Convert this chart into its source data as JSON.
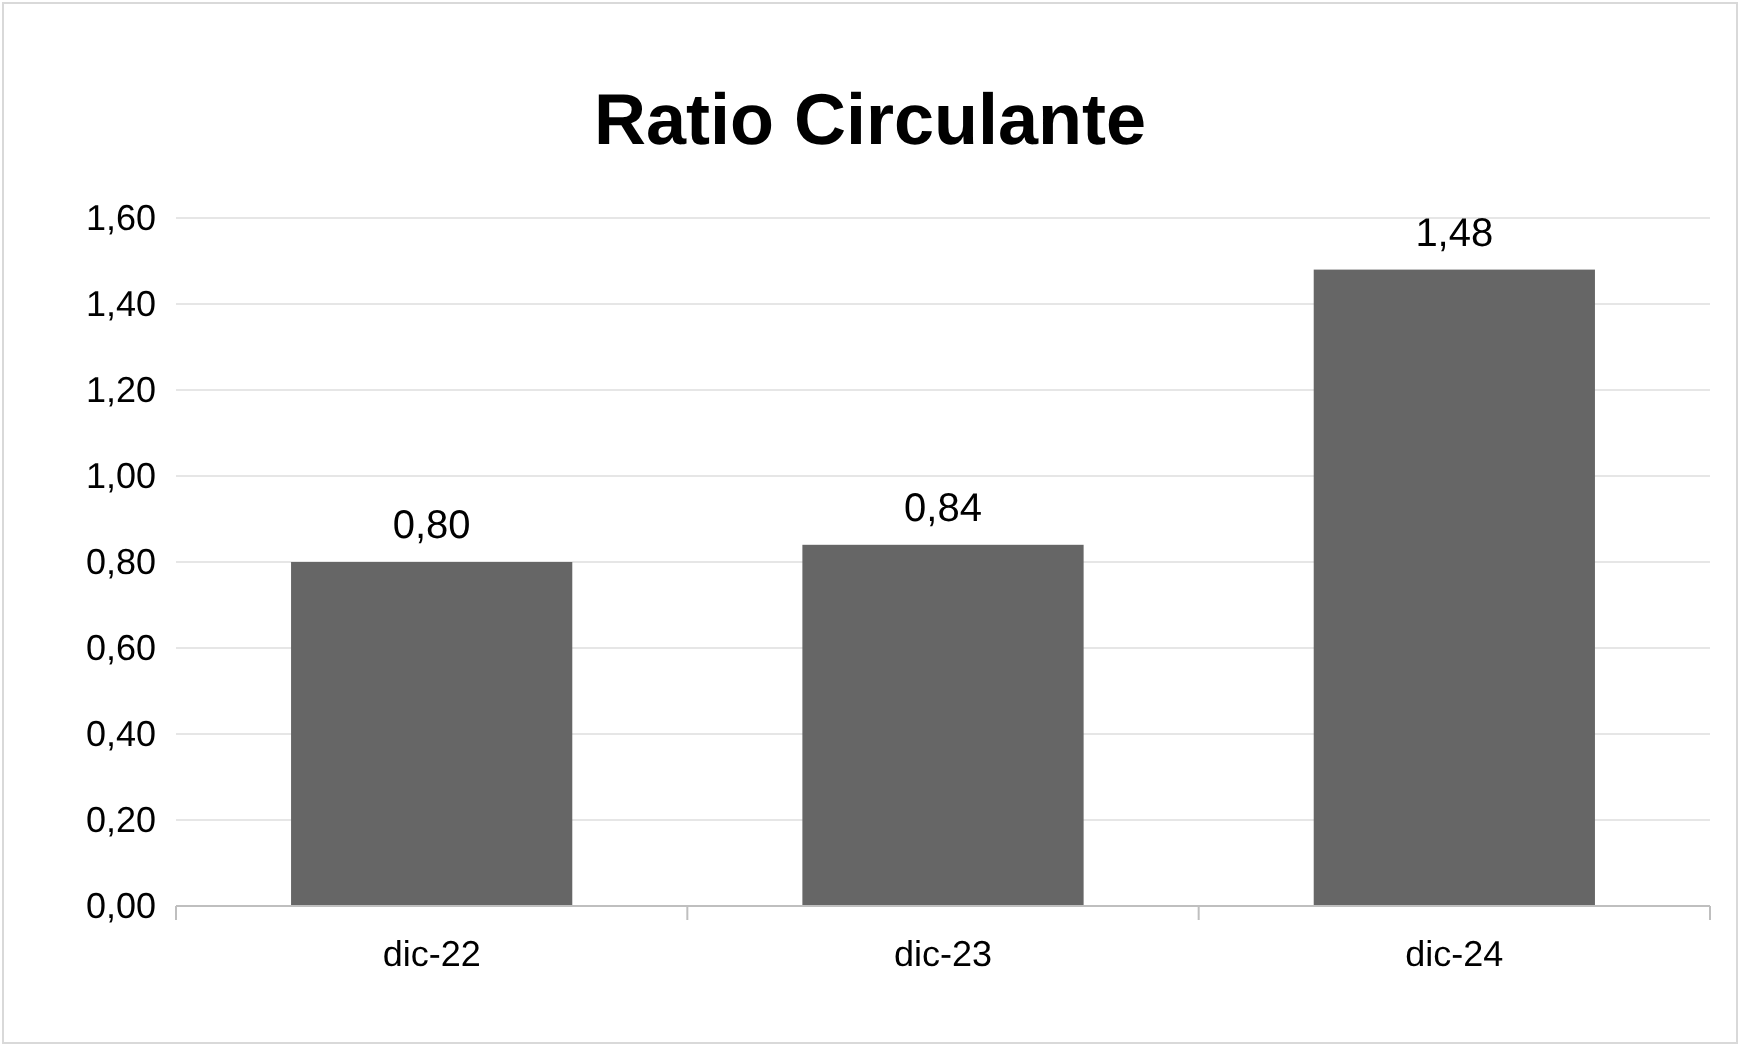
{
  "chart_data": {
    "type": "bar",
    "title": "Ratio Circulante",
    "categories": [
      "dic-22",
      "dic-23",
      "dic-24"
    ],
    "values": [
      0.8,
      0.84,
      1.48
    ],
    "color": "#666666",
    "value_labels": [
      "0,80",
      "0,84",
      "1,48"
    ],
    "ylim": [
      0,
      1.6
    ],
    "yticks": [
      {
        "value": 0,
        "label": "0,00"
      },
      {
        "value": 0.2,
        "label": "0,20"
      },
      {
        "value": 0.4,
        "label": "0,40"
      },
      {
        "value": 0.6,
        "label": "0,60"
      },
      {
        "value": 0.8,
        "label": "0,80"
      },
      {
        "value": 1.0,
        "label": "1,00"
      },
      {
        "value": 1.2,
        "label": "1,20"
      },
      {
        "value": 1.4,
        "label": "1,40"
      },
      {
        "value": 1.6,
        "label": "1,60"
      }
    ],
    "grid": "y"
  }
}
